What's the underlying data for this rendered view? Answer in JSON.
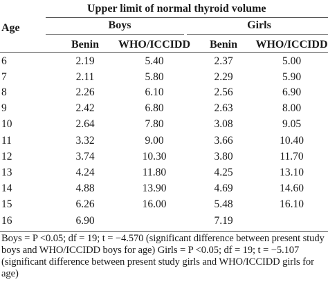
{
  "table": {
    "super_header": "Upper limit of normal thyroid volume",
    "age_header": "Age",
    "groups": [
      "Boys",
      "Girls"
    ],
    "sub_headers": [
      "Benin",
      "WHO/ICCIDD",
      "Benin",
      "WHO/ICCIDD"
    ],
    "rows": [
      {
        "age": "6",
        "boys_benin": "2.19",
        "boys_who": "5.40",
        "girls_benin": "2.37",
        "girls_who": "5.00"
      },
      {
        "age": "7",
        "boys_benin": "2.11",
        "boys_who": "5.80",
        "girls_benin": "2.29",
        "girls_who": "5.90"
      },
      {
        "age": "8",
        "boys_benin": "2.26",
        "boys_who": "6.10",
        "girls_benin": "2.56",
        "girls_who": "6.90"
      },
      {
        "age": "9",
        "boys_benin": "2.42",
        "boys_who": "6.80",
        "girls_benin": "2.63",
        "girls_who": "8.00"
      },
      {
        "age": "10",
        "boys_benin": "2.64",
        "boys_who": "7.80",
        "girls_benin": "3.08",
        "girls_who": "9.05"
      },
      {
        "age": "11",
        "boys_benin": "3.32",
        "boys_who": "9.00",
        "girls_benin": "3.66",
        "girls_who": "10.40"
      },
      {
        "age": "12",
        "boys_benin": "3.74",
        "boys_who": "10.30",
        "girls_benin": "3.80",
        "girls_who": "11.70"
      },
      {
        "age": "13",
        "boys_benin": "4.24",
        "boys_who": "11.80",
        "girls_benin": "4.25",
        "girls_who": "13.10"
      },
      {
        "age": "14",
        "boys_benin": "4.88",
        "boys_who": "13.90",
        "girls_benin": "4.69",
        "girls_who": "14.60"
      },
      {
        "age": "15",
        "boys_benin": "6.26",
        "boys_who": "16.00",
        "girls_benin": "5.48",
        "girls_who": "16.10"
      },
      {
        "age": "16",
        "boys_benin": "6.90",
        "boys_who": "",
        "girls_benin": "7.19",
        "girls_who": ""
      }
    ]
  },
  "footnote": "Boys = P <0.05; df = 19; t = −4.570 (significant difference between present study boys and WHO/ICCIDD boys for age) Girls = P <0.05; df = 19; t = −5.107 (significant difference between present study girls and WHO/ICCIDD girls for age)"
}
